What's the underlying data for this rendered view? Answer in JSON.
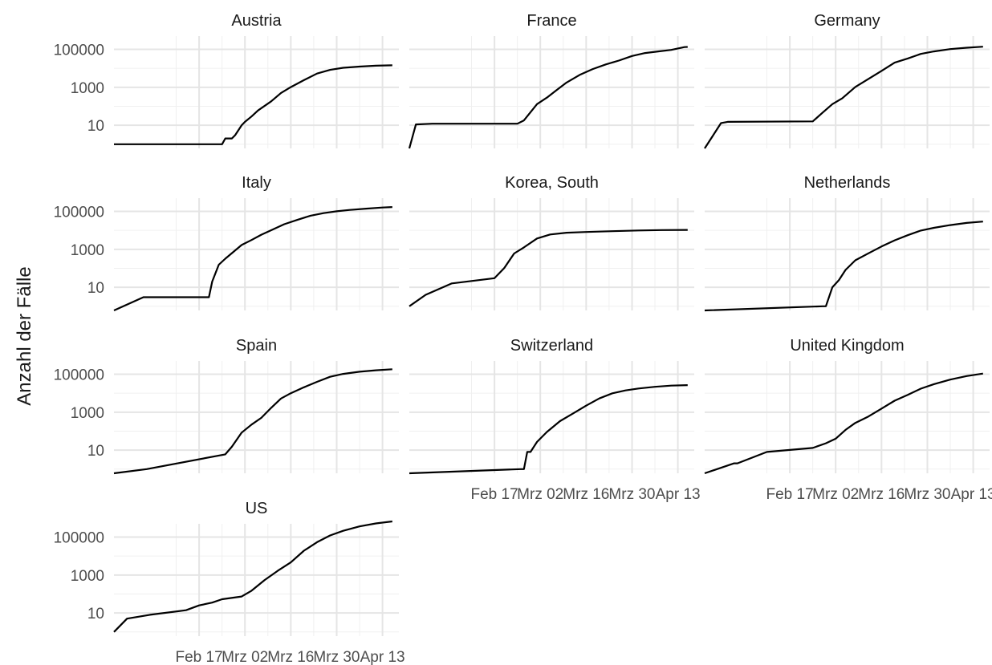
{
  "chart_data": {
    "type": "line",
    "ylabel": "Anzahl der Fälle",
    "xlabel": "",
    "y_scale": "log10",
    "ylim": [
      0.6,
      500000
    ],
    "y_ticks": [
      {
        "value": 10,
        "label": "10"
      },
      {
        "value": 1000,
        "label": "1000"
      },
      {
        "value": 100000,
        "label": "100000"
      }
    ],
    "xlim": [
      "2020-01-22",
      "2020-04-18"
    ],
    "x_ticks": [
      {
        "value": "2020-02-17",
        "label": "Feb 17"
      },
      {
        "value": "2020-03-02",
        "label": "Mrz 02"
      },
      {
        "value": "2020-03-16",
        "label": "Mrz 16"
      },
      {
        "value": "2020-03-30",
        "label": "Mrz 30"
      },
      {
        "value": "2020-04-13",
        "label": "Apr 13"
      }
    ],
    "grid": true,
    "line_color": "#000000",
    "panels": [
      {
        "name": "Austria",
        "x": [
          "2020-01-22",
          "2020-02-24",
          "2020-02-25",
          "2020-02-27",
          "2020-02-28",
          "2020-03-01",
          "2020-03-02",
          "2020-03-04",
          "2020-03-06",
          "2020-03-10",
          "2020-03-13",
          "2020-03-16",
          "2020-03-20",
          "2020-03-24",
          "2020-03-28",
          "2020-04-01",
          "2020-04-06",
          "2020-04-11",
          "2020-04-16"
        ],
        "values": [
          1,
          1,
          2,
          2,
          3,
          10,
          15,
          29,
          60,
          182,
          504,
          1018,
          2388,
          5282,
          8271,
          10711,
          12297,
          13806,
          14476
        ]
      },
      {
        "name": "France",
        "x": [
          "2020-01-22",
          "2020-01-24",
          "2020-01-29",
          "2020-02-24",
          "2020-02-26",
          "2020-03-01",
          "2020-03-04",
          "2020-03-07",
          "2020-03-10",
          "2020-03-14",
          "2020-03-18",
          "2020-03-22",
          "2020-03-26",
          "2020-03-30",
          "2020-04-03",
          "2020-04-07",
          "2020-04-11",
          "2020-04-15",
          "2020-04-16"
        ],
        "values": [
          0,
          11,
          12,
          12,
          18,
          130,
          285,
          716,
          1784,
          4469,
          9105,
          16044,
          25600,
          44550,
          64338,
          78167,
          93790,
          131361,
          134582
        ]
      },
      {
        "name": "Germany",
        "x": [
          "2020-01-22",
          "2020-01-27",
          "2020-01-29",
          "2020-02-24",
          "2020-02-27",
          "2020-03-01",
          "2020-03-04",
          "2020-03-08",
          "2020-03-12",
          "2020-03-16",
          "2020-03-20",
          "2020-03-24",
          "2020-03-28",
          "2020-04-01",
          "2020-04-06",
          "2020-04-11",
          "2020-04-16"
        ],
        "values": [
          0,
          13,
          15,
          16,
          46,
          130,
          262,
          1040,
          2745,
          7272,
          19848,
          32986,
          57695,
          77872,
          103374,
          122171,
          137698
        ]
      },
      {
        "name": "Italy",
        "x": [
          "2020-01-22",
          "2020-01-31",
          "2020-02-20",
          "2020-02-21",
          "2020-02-23",
          "2020-02-25",
          "2020-03-01",
          "2020-03-04",
          "2020-03-07",
          "2020-03-10",
          "2020-03-14",
          "2020-03-18",
          "2020-03-22",
          "2020-03-26",
          "2020-03-30",
          "2020-04-03",
          "2020-04-08",
          "2020-04-13",
          "2020-04-16"
        ],
        "values": [
          0,
          3,
          3,
          20,
          155,
          322,
          1694,
          3089,
          5883,
          10149,
          21157,
          35713,
          59138,
          80589,
          101739,
          119827,
          139422,
          159516,
          168941
        ]
      },
      {
        "name": "Korea, South",
        "x": [
          "2020-01-22",
          "2020-01-27",
          "2020-02-04",
          "2020-02-17",
          "2020-02-20",
          "2020-02-23",
          "2020-02-26",
          "2020-03-01",
          "2020-03-05",
          "2020-03-10",
          "2020-03-16",
          "2020-03-24",
          "2020-04-01",
          "2020-04-08",
          "2020-04-16"
        ],
        "values": [
          1,
          4,
          16,
          30,
          104,
          602,
          1261,
          3736,
          6088,
          7513,
          8236,
          9037,
          9887,
          10384,
          10613
        ]
      },
      {
        "name": "Netherlands",
        "x": [
          "2020-01-22",
          "2020-02-27",
          "2020-02-28",
          "2020-03-01",
          "2020-03-03",
          "2020-03-05",
          "2020-03-08",
          "2020-03-12",
          "2020-03-16",
          "2020-03-20",
          "2020-03-24",
          "2020-03-28",
          "2020-04-01",
          "2020-04-06",
          "2020-04-11",
          "2020-04-16"
        ],
        "values": [
          0,
          1,
          1,
          10,
          24,
          82,
          265,
          614,
          1414,
          2994,
          5580,
          9819,
          13614,
          18926,
          24571,
          29214
        ]
      },
      {
        "name": "Spain",
        "x": [
          "2020-01-22",
          "2020-02-01",
          "2020-02-25",
          "2020-02-27",
          "2020-03-01",
          "2020-03-04",
          "2020-03-07",
          "2020-03-10",
          "2020-03-13",
          "2020-03-16",
          "2020-03-20",
          "2020-03-24",
          "2020-03-28",
          "2020-04-01",
          "2020-04-06",
          "2020-04-11",
          "2020-04-16"
        ],
        "values": [
          0,
          1,
          6,
          15,
          84,
          222,
          500,
          1695,
          5232,
          9942,
          20410,
          39885,
          73235,
          104118,
          135032,
          161852,
          182816
        ]
      },
      {
        "name": "Switzerland",
        "x": [
          "2020-01-22",
          "2020-02-25",
          "2020-02-26",
          "2020-02-27",
          "2020-02-28",
          "2020-03-01",
          "2020-03-04",
          "2020-03-08",
          "2020-03-12",
          "2020-03-16",
          "2020-03-20",
          "2020-03-24",
          "2020-03-28",
          "2020-04-01",
          "2020-04-06",
          "2020-04-11",
          "2020-04-16"
        ],
        "values": [
          0,
          1,
          1,
          8,
          8,
          27,
          90,
          337,
          858,
          2200,
          5294,
          9877,
          14076,
          17768,
          21657,
          25107,
          26732
        ]
      },
      {
        "name": "United Kingdom",
        "x": [
          "2020-01-22",
          "2020-01-31",
          "2020-02-01",
          "2020-02-10",
          "2020-02-24",
          "2020-02-28",
          "2020-03-02",
          "2020-03-05",
          "2020-03-08",
          "2020-03-12",
          "2020-03-16",
          "2020-03-20",
          "2020-03-24",
          "2020-03-28",
          "2020-04-01",
          "2020-04-06",
          "2020-04-11",
          "2020-04-16"
        ],
        "values": [
          0,
          2,
          2,
          8,
          13,
          23,
          40,
          116,
          273,
          590,
          1543,
          4014,
          8164,
          17312,
          29865,
          52279,
          79874,
          108692
        ]
      },
      {
        "name": "US",
        "x": [
          "2020-01-22",
          "2020-01-26",
          "2020-02-02",
          "2020-02-13",
          "2020-02-17",
          "2020-02-21",
          "2020-02-24",
          "2020-03-01",
          "2020-03-04",
          "2020-03-08",
          "2020-03-12",
          "2020-03-16",
          "2020-03-20",
          "2020-03-24",
          "2020-03-28",
          "2020-04-01",
          "2020-04-06",
          "2020-04-11",
          "2020-04-16"
        ],
        "values": [
          1,
          5,
          8,
          14,
          25,
          35,
          53,
          74,
          149,
          541,
          1663,
          4632,
          19100,
          53740,
          121478,
          213372,
          366614,
          526396,
          667801
        ]
      }
    ]
  }
}
